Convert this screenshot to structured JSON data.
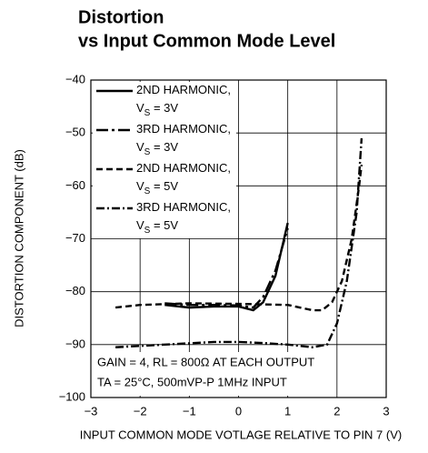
{
  "chart_data": {
    "type": "line",
    "title": "Distortion",
    "subtitle": "vs Input Common Mode Level",
    "x_label": "INPUT COMMON MODE VOTLAGE RELATIVE TO PIN 7 (V)",
    "y_label": "DISTORTION COMPONENT (dB)",
    "annotations": [
      "GAIN = 4, RL = 800Ω AT EACH OUTPUT",
      "TA = 25°C, 500mVP-P 1MHz INPUT"
    ],
    "xlim": [
      -3,
      3
    ],
    "xticks": [
      {
        "value": -3,
        "label": "−3"
      },
      {
        "value": -2,
        "label": "−2"
      },
      {
        "value": -1,
        "label": "−1"
      },
      0,
      1,
      2,
      3
    ],
    "ylim": [
      -100,
      -40
    ],
    "yticks": [
      {
        "value": -100,
        "label": "−100"
      },
      {
        "value": -90,
        "label": "−90"
      },
      {
        "value": -80,
        "label": "−80"
      },
      {
        "value": -70,
        "label": "−70"
      },
      {
        "value": -60,
        "label": "−60"
      },
      {
        "value": -50,
        "label": "−50"
      },
      {
        "value": -40,
        "label": "−40"
      }
    ],
    "grid": true,
    "legend": "upper left",
    "series": [
      {
        "name": "2ND HARMONIC, VS = 3V",
        "color": "#000000",
        "linestyle": "solid",
        "x": [
          -1.5,
          -1.0,
          -0.5,
          0.0,
          0.3,
          0.5,
          0.75,
          1.0
        ],
        "values": [
          -82.5,
          -83,
          -82.8,
          -82.8,
          -83.5,
          -82,
          -77,
          -67
        ]
      },
      {
        "name": "3RD HARMONIC, VS = 3V",
        "color": "#000000",
        "linestyle": "longdashdot",
        "x": [
          -1.5,
          -1.0,
          -0.5,
          0.0,
          0.3,
          0.5,
          0.75,
          1.0
        ],
        "values": [
          -82.2,
          -82.5,
          -82.5,
          -82.6,
          -83,
          -81,
          -76,
          -68
        ]
      },
      {
        "name": "2ND HARMONIC, VS = 5V",
        "color": "#000000",
        "linestyle": "dashed",
        "x": [
          -2.5,
          -2.0,
          -1.0,
          0.0,
          1.0,
          1.5,
          1.7,
          1.9,
          2.1,
          2.3,
          2.45,
          2.5
        ],
        "values": [
          -83,
          -82.5,
          -82.2,
          -82.3,
          -82.5,
          -83.5,
          -83.5,
          -82,
          -78,
          -70,
          -60,
          -56
        ]
      },
      {
        "name": "3RD HARMONIC, VS = 5V",
        "color": "#000000",
        "linestyle": "dashdot",
        "x": [
          -2.5,
          -1.5,
          -0.5,
          0.0,
          0.5,
          1.0,
          1.5,
          1.8,
          2.0,
          2.2,
          2.4,
          2.5
        ],
        "values": [
          -90.5,
          -90,
          -89.5,
          -89.5,
          -89.7,
          -90,
          -90.5,
          -90,
          -86,
          -78,
          -65,
          -51
        ]
      }
    ]
  }
}
